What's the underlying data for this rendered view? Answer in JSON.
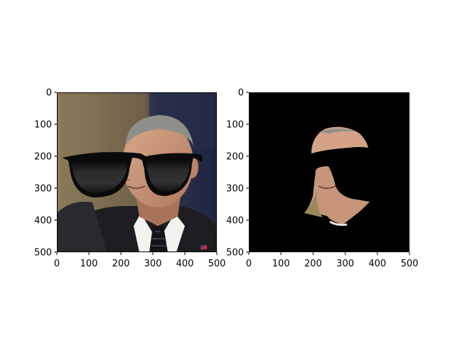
{
  "figure": {
    "background": "#ffffff"
  },
  "chart_data": [
    {
      "type": "heatmap",
      "content": "photo of a man in a suit wearing black sunglasses",
      "xlim": [
        0,
        500
      ],
      "ylim": [
        500,
        0
      ],
      "xticks": [
        0,
        100,
        200,
        300,
        400,
        500
      ],
      "yticks": [
        0,
        100,
        200,
        300,
        400,
        500
      ],
      "x_tick_labels": [
        "0",
        "100",
        "200",
        "300",
        "400",
        "500"
      ],
      "y_tick_labels": [
        "0",
        "100",
        "200",
        "300",
        "400",
        "500"
      ],
      "grid": false
    },
    {
      "type": "heatmap",
      "content": "masked face region: forehead and lower face visible, rest black",
      "xlim": [
        0,
        500
      ],
      "ylim": [
        500,
        0
      ],
      "xticks": [
        0,
        100,
        200,
        300,
        400,
        500
      ],
      "yticks": [
        0,
        100,
        200,
        300,
        400,
        500
      ],
      "x_tick_labels": [
        "0",
        "100",
        "200",
        "300",
        "400",
        "500"
      ],
      "y_tick_labels": [
        "0",
        "100",
        "200",
        "300",
        "400",
        "500"
      ],
      "grid": false
    }
  ]
}
